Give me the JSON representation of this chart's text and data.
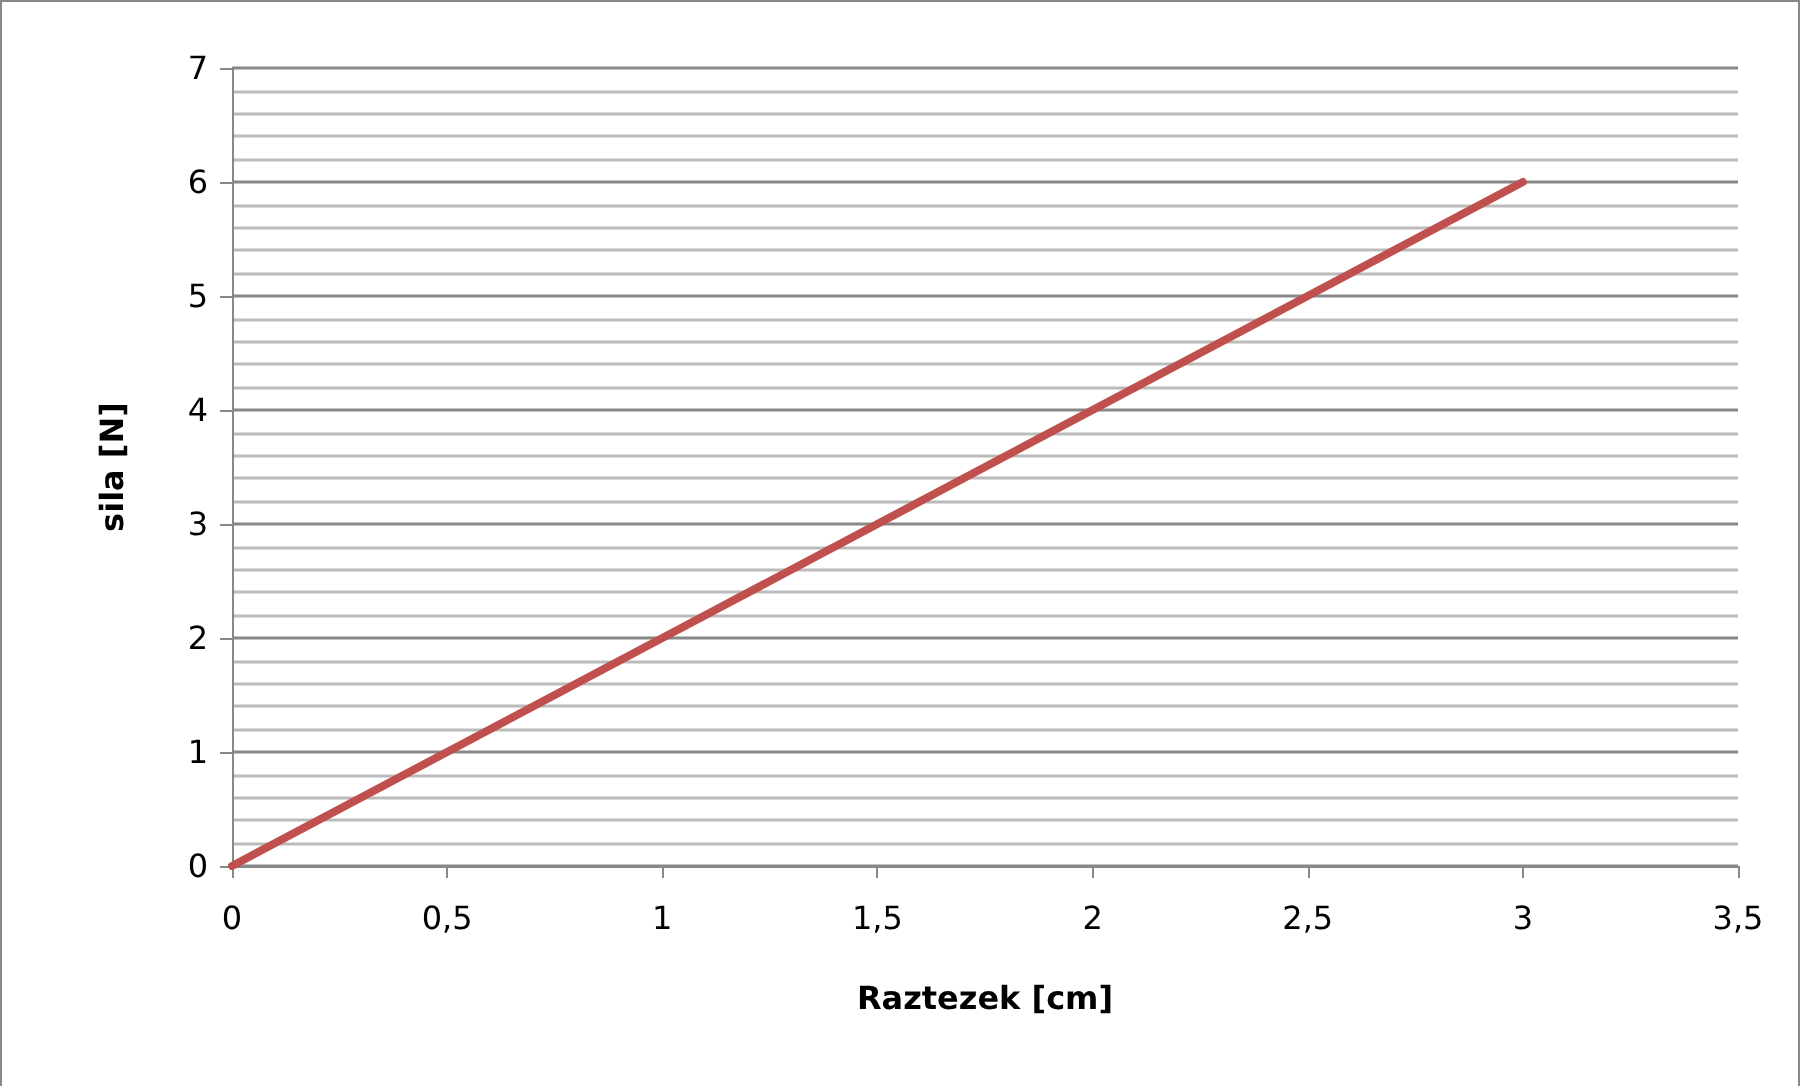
{
  "chart_data": {
    "type": "line",
    "xlabel": "Raztezek [cm]",
    "ylabel": "sila [N]",
    "x": [
      0,
      0.5,
      1,
      1.5,
      2,
      2.5,
      3
    ],
    "series": [
      {
        "color": "#c0504d",
        "values": [
          0,
          1,
          2,
          3,
          4,
          5,
          6
        ]
      }
    ],
    "xlim": [
      0,
      3.5
    ],
    "xticks": [
      0,
      {
        "value": 0.5,
        "label": "0,5"
      },
      1,
      {
        "value": 1.5,
        "label": "1,5"
      },
      2,
      {
        "value": 2.5,
        "label": "2,5"
      },
      3,
      {
        "value": 3.5,
        "label": "3,5"
      }
    ],
    "ylim": [
      0,
      7
    ],
    "yticks": [
      0,
      1,
      2,
      3,
      4,
      5,
      6,
      7
    ],
    "grid": "y",
    "marker": "none",
    "line_style": "solid"
  }
}
